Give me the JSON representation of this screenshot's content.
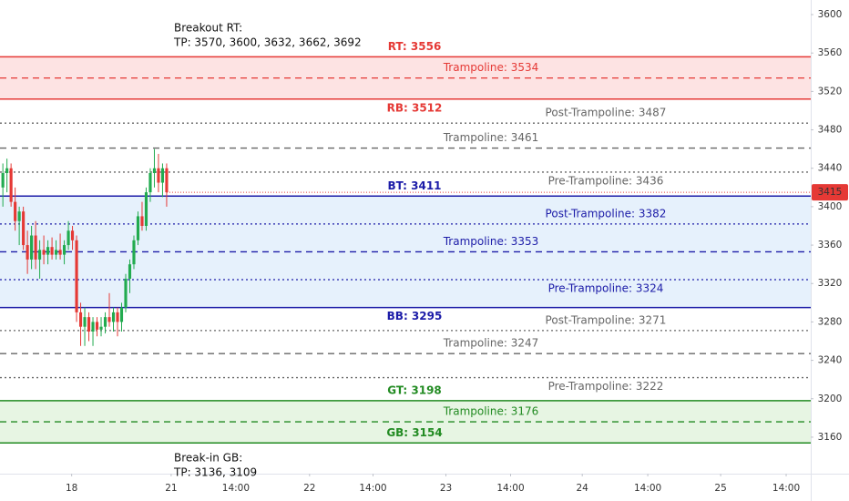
{
  "chart_data": {
    "type": "candlestick",
    "annotations": [
      {
        "lines": [
          "Breakout RT:",
          "TP: 3570, 3600, 3632, 3662, 3692"
        ],
        "price": 3586
      },
      {
        "lines": [
          "Break-in GB:",
          "TP: 3136, 3109"
        ],
        "price": 3138
      }
    ],
    "x": [
      0.7,
      1.7,
      2.7,
      3.7,
      4.7,
      5.7,
      6.7,
      7.7,
      8.7,
      9.7,
      10.7,
      11.7,
      12.7,
      13.7,
      14.7,
      15.7,
      16.7,
      17.7,
      18.7,
      19.7,
      20.7,
      21.7,
      22.7,
      23.7,
      24.7,
      25.7,
      26.7,
      27.7,
      28.7,
      29.7,
      30.7,
      31.7,
      32.7,
      33.7,
      34.7,
      35.7,
      36.7,
      37.7,
      38.7,
      39.7,
      40.7
    ],
    "open": [
      3420,
      3435,
      3440,
      3405,
      3385,
      3395,
      3360,
      3345,
      3370,
      3345,
      3355,
      3350,
      3358,
      3350,
      3355,
      3350,
      3360,
      3375,
      3365,
      3290,
      3275,
      3285,
      3270,
      3280,
      3272,
      3275,
      3285,
      3280,
      3290,
      3280,
      3295,
      3325,
      3340,
      3365,
      3390,
      3380,
      3415,
      3435,
      3440,
      3425,
      3440
    ],
    "high": [
      3445,
      3450,
      3445,
      3420,
      3400,
      3400,
      3375,
      3380,
      3385,
      3365,
      3370,
      3365,
      3368,
      3365,
      3372,
      3365,
      3385,
      3380,
      3370,
      3300,
      3295,
      3290,
      3285,
      3285,
      3285,
      3290,
      3310,
      3295,
      3295,
      3300,
      3330,
      3345,
      3370,
      3395,
      3405,
      3420,
      3440,
      3460,
      3455,
      3445,
      3445
    ],
    "low": [
      3400,
      3415,
      3400,
      3375,
      3360,
      3355,
      3330,
      3335,
      3335,
      3325,
      3340,
      3340,
      3345,
      3345,
      3345,
      3340,
      3355,
      3355,
      3280,
      3255,
      3255,
      3260,
      3255,
      3265,
      3265,
      3268,
      3275,
      3270,
      3265,
      3270,
      3290,
      3310,
      3335,
      3360,
      3375,
      3375,
      3405,
      3420,
      3415,
      3410,
      3400
    ],
    "close": [
      3435,
      3440,
      3405,
      3385,
      3395,
      3360,
      3345,
      3370,
      3345,
      3355,
      3350,
      3358,
      3350,
      3355,
      3350,
      3360,
      3375,
      3365,
      3290,
      3275,
      3285,
      3270,
      3280,
      3272,
      3275,
      3285,
      3280,
      3290,
      3280,
      3295,
      3325,
      3340,
      3365,
      3390,
      3380,
      3415,
      3435,
      3440,
      3425,
      3440,
      3415
    ],
    "up_color": "#22ab4f",
    "down_color": "#e53935",
    "last_price": 3415,
    "levels": [
      {
        "label": "RT: 3556",
        "value": 3556,
        "color": "#e53935",
        "style": "solid",
        "label_position": "above"
      },
      {
        "label": "Trampoline: 3534",
        "value": 3534,
        "color": "#e53935",
        "style": "dashed",
        "label_position": "above"
      },
      {
        "label": "RB: 3512",
        "value": 3512,
        "color": "#e53935",
        "style": "solid",
        "label_position": "below"
      },
      {
        "label": "Post-Trampoline: 3487",
        "value": 3487,
        "color": "#666666",
        "style": "dotted",
        "label_position": "above"
      },
      {
        "label": "Trampoline: 3461",
        "value": 3461,
        "color": "#666666",
        "style": "dashed",
        "label_position": "above"
      },
      {
        "label": "Pre-Trampoline: 3436",
        "value": 3436,
        "color": "#666666",
        "style": "dotted",
        "label_position": "below"
      },
      {
        "label": "BT: 3411",
        "value": 3411,
        "color": "#1c1ca8",
        "style": "solid",
        "label_position": "above"
      },
      {
        "label": "Post-Trampoline: 3382",
        "value": 3382,
        "color": "#1c1ca8",
        "style": "dotted",
        "label_position": "above"
      },
      {
        "label": "Trampoline: 3353",
        "value": 3353,
        "color": "#1c1ca8",
        "style": "dashed",
        "label_position": "above"
      },
      {
        "label": "Pre-Trampoline: 3324",
        "value": 3324,
        "color": "#1c1ca8",
        "style": "dotted",
        "label_position": "below"
      },
      {
        "label": "BB: 3295",
        "value": 3295,
        "color": "#1c1ca8",
        "style": "solid",
        "label_position": "below"
      },
      {
        "label": "Post-Trampoline: 3271",
        "value": 3271,
        "color": "#666666",
        "style": "dotted",
        "label_position": "above"
      },
      {
        "label": "Trampoline: 3247",
        "value": 3247,
        "color": "#666666",
        "style": "dashed",
        "label_position": "above"
      },
      {
        "label": "Pre-Trampoline: 3222",
        "value": 3222,
        "color": "#666666",
        "style": "dotted",
        "label_position": "below"
      },
      {
        "label": "GT: 3198",
        "value": 3198,
        "color": "#228b22",
        "style": "solid",
        "label_position": "above"
      },
      {
        "label": "Trampoline: 3176",
        "value": 3176,
        "color": "#228b22",
        "style": "dashed",
        "label_position": "above"
      },
      {
        "label": "GB: 3154",
        "value": 3154,
        "color": "#228b22",
        "style": "solid",
        "label_position": "above"
      }
    ],
    "zones": [
      {
        "top": 3556,
        "bottom": 3512,
        "color": "#fde3e3"
      },
      {
        "top": 3411,
        "bottom": 3295,
        "color": "#e6f1fc"
      },
      {
        "top": 3198,
        "bottom": 3154,
        "color": "#e7f5e3"
      }
    ],
    "xlim": [
      0,
      198
    ],
    "xticks": [
      {
        "value": 17.5,
        "label": "18"
      },
      {
        "value": 41.8,
        "label": "21"
      },
      {
        "value": 57.6,
        "label": "14:00"
      },
      {
        "value": 75.6,
        "label": "22"
      },
      {
        "value": 91.1,
        "label": "14:00"
      },
      {
        "value": 108.9,
        "label": "23"
      },
      {
        "value": 124.7,
        "label": "14:00"
      },
      {
        "value": 142.2,
        "label": "24"
      },
      {
        "value": 158.2,
        "label": "14:00"
      },
      {
        "value": 176,
        "label": "25"
      },
      {
        "value": 192,
        "label": "14:00"
      }
    ],
    "ylim": [
      3122,
      3615.2
    ],
    "yticks": [
      3160,
      3200,
      3240,
      3280,
      3320,
      3360,
      3400,
      3440,
      3480,
      3520,
      3560,
      3600
    ]
  }
}
